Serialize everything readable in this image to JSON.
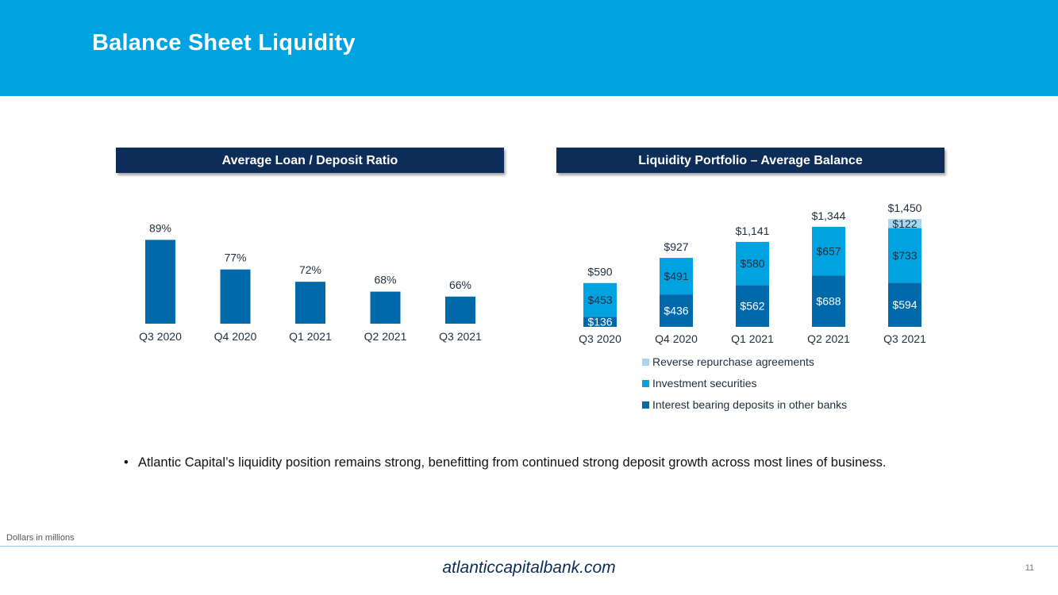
{
  "header": {
    "title": "Balance Sheet Liquidity"
  },
  "colors": {
    "header_bg": "#00a3df",
    "panel_bar": "#0c2d57",
    "dark_blue": "#0069aa",
    "medium_blue": "#00a3df",
    "light_blue": "#a6d7ef",
    "label_dark": "#1f2d3d"
  },
  "chart_data": [
    {
      "type": "bar",
      "title": "Average Loan / Deposit Ratio",
      "categories": [
        "Q3 2020",
        "Q4 2020",
        "Q1 2021",
        "Q2 2021",
        "Q3 2021"
      ],
      "values": [
        89,
        77,
        72,
        68,
        66
      ],
      "value_labels": [
        "89%",
        "77%",
        "72%",
        "68%",
        "66%"
      ],
      "ylim": [
        55,
        92
      ],
      "xlabel": "",
      "ylabel": "",
      "grid": false
    },
    {
      "type": "bar",
      "stacked": true,
      "title": "Liquidity Portfolio – Average Balance",
      "categories": [
        "Q3 2020",
        "Q4 2020",
        "Q1 2021",
        "Q2 2021",
        "Q3 2021"
      ],
      "series": [
        {
          "name": "Interest bearing deposits in other banks",
          "values": [
            136,
            436,
            562,
            688,
            594
          ],
          "labels": [
            "$136",
            "$436",
            "$562",
            "$688",
            "$594"
          ]
        },
        {
          "name": "Investment securities",
          "values": [
            453,
            491,
            580,
            657,
            733
          ],
          "labels": [
            "$453",
            "$491",
            "$580",
            "$657",
            "$733"
          ]
        },
        {
          "name": "Reverse repurchase agreements",
          "values": [
            0,
            0,
            0,
            0,
            122
          ],
          "labels": [
            "",
            "",
            "",
            "",
            "$122"
          ]
        }
      ],
      "totals": [
        590,
        927,
        1141,
        1344,
        1450
      ],
      "total_labels": [
        "$590",
        "$927",
        "$1,141",
        "$1,344",
        "$1,450"
      ],
      "legend": [
        "Reverse repurchase agreements",
        "Investment securities",
        "Interest bearing deposits in other banks"
      ],
      "legend_placement": "bottom",
      "ylim": [
        0,
        1450
      ],
      "xlabel": "",
      "ylabel": "",
      "grid": false
    }
  ],
  "bullets": [
    "Atlantic Capital’s liquidity position remains strong, benefitting from continued strong deposit growth across most lines of business."
  ],
  "bullet_marker": "•",
  "footnote": "Dollars in millions",
  "footer": {
    "website": "atlanticcapitalbank.com",
    "page_number": "11"
  }
}
